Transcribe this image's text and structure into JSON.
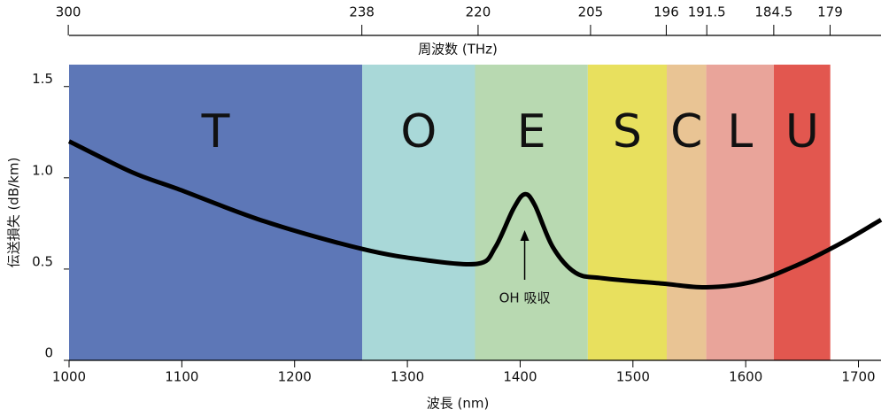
{
  "chart_data": {
    "type": "line",
    "xlabel": "波長 (nm)",
    "ylabel": "伝送損失 (dB/km)",
    "x2label": "周波数 (THz)",
    "xlim": [
      1000,
      1720
    ],
    "xticks": [
      1000,
      1100,
      1200,
      1300,
      1400,
      1500,
      1600,
      1700
    ],
    "ylim": [
      0,
      1.62
    ],
    "yticks": [
      0,
      {
        "value": 0.5,
        "label": "0.5"
      },
      {
        "value": 1,
        "label": "1.0"
      },
      1.5
    ],
    "x2ticks": [
      300,
      238,
      220,
      205,
      196,
      191.5,
      184.5,
      179
    ],
    "bands": [
      {
        "name": "T",
        "start": 1000,
        "end": 1260,
        "color": "#5d77b7"
      },
      {
        "name": "O",
        "start": 1260,
        "end": 1360,
        "color": "#a9d8d8"
      },
      {
        "name": "E",
        "start": 1360,
        "end": 1460,
        "color": "#b8d9b1"
      },
      {
        "name": "S",
        "start": 1460,
        "end": 1530,
        "color": "#e8e05e"
      },
      {
        "name": "C",
        "start": 1530,
        "end": 1565,
        "color": "#e9c494"
      },
      {
        "name": "L",
        "start": 1565,
        "end": 1625,
        "color": "#e9a49a"
      },
      {
        "name": "U",
        "start": 1625,
        "end": 1675,
        "color": "#e2574f"
      }
    ],
    "series": [
      {
        "color": "#000000",
        "x": [
          1000,
          1056,
          1096,
          1174,
          1260,
          1315,
          1363,
          1378,
          1394,
          1404,
          1413,
          1429,
          1449,
          1473,
          1527,
          1565,
          1606,
          1645,
          1684,
          1720
        ],
        "values": [
          1.2,
          1.03,
          0.94,
          0.76,
          0.61,
          0.55,
          0.53,
          0.62,
          0.83,
          0.91,
          0.85,
          0.62,
          0.48,
          0.45,
          0.42,
          0.4,
          0.43,
          0.52,
          0.64,
          0.77
        ]
      }
    ],
    "annotation": {
      "text": "OH 吸収",
      "x": 1404
    }
  }
}
